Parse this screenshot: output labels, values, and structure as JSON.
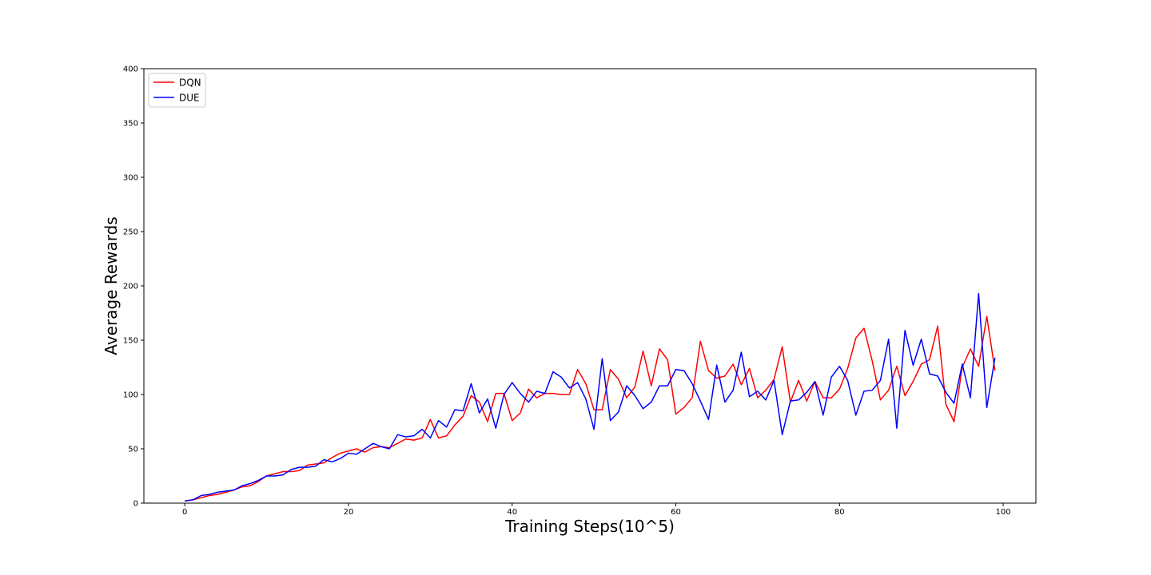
{
  "chart_data": {
    "type": "line",
    "xlabel": "Training Steps(10^5)",
    "ylabel": "Average Rewards",
    "xlim": [
      -5,
      104
    ],
    "ylim": [
      0,
      400
    ],
    "xticks": [
      0,
      20,
      40,
      60,
      80,
      100
    ],
    "yticks": [
      0,
      50,
      100,
      150,
      200,
      250,
      300,
      350,
      400
    ],
    "grid": false,
    "legend_position": "top-left",
    "x": [
      0,
      1,
      2,
      3,
      4,
      5,
      6,
      7,
      8,
      9,
      10,
      11,
      12,
      13,
      14,
      15,
      16,
      17,
      18,
      19,
      20,
      21,
      22,
      23,
      24,
      25,
      26,
      27,
      28,
      29,
      30,
      31,
      32,
      33,
      34,
      35,
      36,
      37,
      38,
      39,
      40,
      41,
      42,
      43,
      44,
      45,
      46,
      47,
      48,
      49,
      50,
      51,
      52,
      53,
      54,
      55,
      56,
      57,
      58,
      59,
      60,
      61,
      62,
      63,
      64,
      65,
      66,
      67,
      68,
      69,
      70,
      71,
      72,
      73,
      74,
      75,
      76,
      77,
      78,
      79,
      80,
      81,
      82,
      83,
      84,
      85,
      86,
      87,
      88,
      89,
      90,
      91,
      92,
      93,
      94,
      95,
      96,
      97,
      98,
      99
    ],
    "series": [
      {
        "name": "DQN",
        "color": "#ff0000",
        "values": [
          2,
          3,
          5,
          7,
          8,
          10,
          12,
          15,
          16,
          20,
          25,
          27,
          29,
          29,
          30,
          35,
          36,
          37,
          42,
          46,
          48,
          50,
          47,
          51,
          52,
          51,
          55,
          59,
          58,
          60,
          77,
          60,
          62,
          72,
          80,
          99,
          93,
          75,
          101,
          101,
          76,
          83,
          105,
          97,
          101,
          101,
          100,
          100,
          123,
          110,
          86,
          86,
          123,
          114,
          97,
          107,
          140,
          108,
          142,
          132,
          82,
          88,
          97,
          149,
          122,
          115,
          117,
          128,
          109,
          124,
          97,
          104,
          114,
          144,
          93,
          113,
          94,
          112,
          97,
          97,
          105,
          124,
          152,
          161,
          131,
          95,
          104,
          126,
          99,
          112,
          128,
          132,
          163,
          91,
          75,
          125,
          142,
          126,
          172,
          122
        ]
      },
      {
        "name": "DUE",
        "color": "#0000ff",
        "values": [
          2,
          3,
          7,
          8,
          10,
          11,
          12,
          16,
          18,
          21,
          25,
          25,
          26,
          31,
          33,
          33,
          34,
          40,
          38,
          41,
          46,
          45,
          50,
          55,
          52,
          50,
          63,
          61,
          62,
          68,
          60,
          76,
          70,
          86,
          85,
          110,
          83,
          96,
          69,
          100,
          111,
          101,
          93,
          103,
          101,
          121,
          116,
          106,
          111,
          96,
          68,
          133,
          76,
          84,
          108,
          99,
          87,
          93,
          108,
          108,
          123,
          122,
          110,
          94,
          77,
          127,
          93,
          104,
          139,
          98,
          103,
          95,
          113,
          63,
          94,
          95,
          102,
          112,
          81,
          116,
          126,
          113,
          81,
          103,
          104,
          113,
          151,
          69,
          159,
          127,
          151,
          119,
          117,
          102,
          92,
          128,
          97,
          193,
          88,
          134
        ]
      }
    ]
  }
}
